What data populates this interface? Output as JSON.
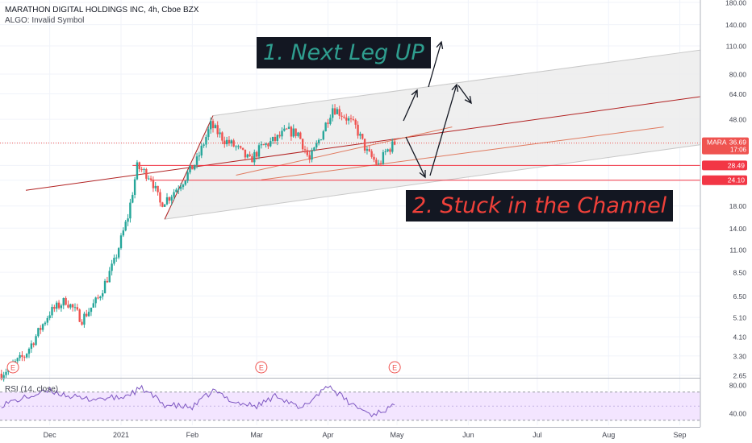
{
  "header": {
    "title": "MARATHON DIGITAL HOLDINGS INC, 4h, Cboe BZX",
    "subtitle": "ALGO: Invalid Symbol"
  },
  "annotations": {
    "box1": "1. Next Leg UP",
    "box2": "2. Stuck in the Channel",
    "earnings_marker": "E"
  },
  "rsi_label": "RSI (14, close)",
  "colors": {
    "bull": "#26a69a",
    "bear": "#ef5350",
    "channel_fill": "#ececec",
    "trend_line": "#b22222",
    "level_line": "#f23645",
    "rsi_line": "#7e57c2",
    "rsi_band": "#f3e5ff",
    "box_bg": "#131722",
    "box1_text": "#2f9e8f",
    "box2_text": "#f0413a"
  },
  "chart_data": [
    {
      "type": "candlestick",
      "title": "MARATHON DIGITAL HOLDINGS INC, 4h, Cboe BZX",
      "yscale": "log",
      "ylim": [
        2.6,
        190
      ],
      "y_ticks": [
        "180.00",
        "140.00",
        "110.00",
        "80.00",
        "64.00",
        "48.00",
        "36.69",
        "28.49",
        "24.10",
        "18.00",
        "14.00",
        "11.00",
        "8.50",
        "6.50",
        "5.10",
        "4.10",
        "3.30",
        "2.65"
      ],
      "x_ticks": [
        "Dec",
        "2021",
        "Feb",
        "Mar",
        "Apr",
        "May",
        "Jun",
        "Jul",
        "Aug",
        "Sep"
      ],
      "price_labels": [
        {
          "label": "MARA",
          "value": "36.69",
          "sub": "17:06"
        },
        {
          "value": "28.49"
        },
        {
          "value": "24.10"
        }
      ],
      "close_path": [
        [
          "Nov 10",
          2.7
        ],
        [
          "Nov 20",
          3.3
        ],
        [
          "Dec 1",
          5.4
        ],
        [
          "Dec 8",
          6.2
        ],
        [
          "Dec 15",
          5.0
        ],
        [
          "Dec 22",
          6.3
        ],
        [
          "Dec 29",
          9.5
        ],
        [
          "Jan 4",
          16.0
        ],
        [
          "Jan 8",
          28.0
        ],
        [
          "Jan 10",
          27.0
        ],
        [
          "Jan 14",
          25.0
        ],
        [
          "Jan 18",
          18.5
        ],
        [
          "Jan 22",
          20.0
        ],
        [
          "Jan 28",
          24.0
        ],
        [
          "Feb 3",
          30.0
        ],
        [
          "Feb 9",
          45.0
        ],
        [
          "Feb 15",
          38.0
        ],
        [
          "Feb 20",
          35.0
        ],
        [
          "Feb 26",
          30.0
        ],
        [
          "Mar 3",
          35.0
        ],
        [
          "Mar 9",
          38.0
        ],
        [
          "Mar 14",
          42.0
        ],
        [
          "Mar 19",
          41.0
        ],
        [
          "Mar 24",
          30.0
        ],
        [
          "Mar 29",
          40.0
        ],
        [
          "Apr 3",
          55.0
        ],
        [
          "Apr 8",
          50.0
        ],
        [
          "Apr 13",
          44.0
        ],
        [
          "Apr 18",
          33.0
        ],
        [
          "Apr 23",
          28.5
        ],
        [
          "Apr 26",
          33.0
        ],
        [
          "Apr 30",
          36.7
        ]
      ],
      "levels": [
        28.49,
        24.1
      ],
      "earnings_dates": [
        "Nov 15",
        "Mar 3",
        "Apr 30"
      ]
    },
    {
      "type": "line",
      "title": "RSI (14, close)",
      "ylim": [
        30,
        90
      ],
      "y_ticks": [
        "80.00",
        "40.00"
      ],
      "band": [
        30,
        70
      ],
      "x": [
        "Nov 10",
        "Dec 1",
        "Dec 15",
        "Jan 1",
        "Jan 10",
        "Jan 20",
        "Feb 1",
        "Feb 10",
        "Feb 20",
        "Mar 1",
        "Mar 10",
        "Mar 20",
        "Apr 1",
        "Apr 10",
        "Apr 20",
        "Apr 30"
      ],
      "values": [
        52,
        72,
        60,
        62,
        75,
        52,
        48,
        72,
        55,
        50,
        66,
        45,
        80,
        55,
        38,
        50
      ]
    }
  ]
}
